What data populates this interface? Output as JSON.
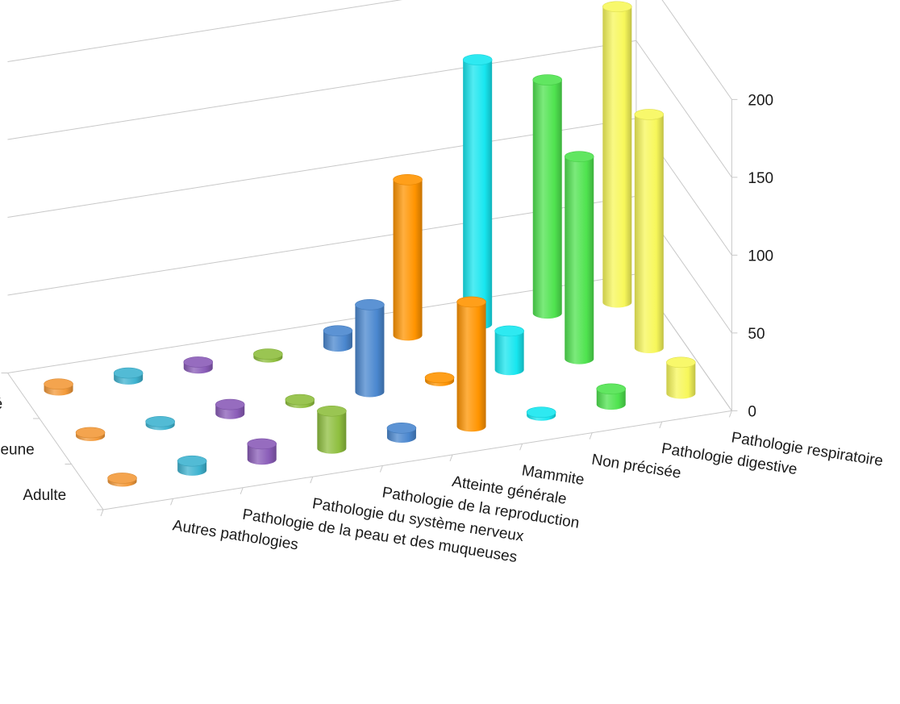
{
  "chart_data": {
    "type": "bar",
    "variant": "3d-cylinder",
    "title": "",
    "categories": [
      "Autres pathologies",
      "Pathologie de la peau et des muqueuses",
      "Pathologie du système nerveux",
      "Pathologie de la reproduction",
      "Atteinte générale",
      "Mammite",
      "Non précisée",
      "Pathologie digestive",
      "Pathologie respiratoire"
    ],
    "series": [
      {
        "name": "Adulte",
        "values": [
          1,
          6,
          10,
          24,
          6,
          80,
          2,
          10,
          20
        ]
      },
      {
        "name": "Jeune",
        "values": [
          2,
          2,
          6,
          1,
          56,
          1,
          25,
          130,
          150
        ]
      },
      {
        "name": "Non précisé",
        "values": [
          4,
          4,
          4,
          1,
          10,
          100,
          170,
          150,
          190
        ]
      }
    ],
    "colors": [
      "#f39a3a",
      "#3fb3d0",
      "#8a5cb8",
      "#8fbf3f",
      "#4a87cf",
      "#ff9400",
      "#17e6ef",
      "#4fe34f",
      "#f7f75a"
    ],
    "zlim": [
      0,
      200
    ],
    "zticks": [
      "0",
      "50",
      "100",
      "150",
      "200"
    ],
    "grid": true,
    "legend": "none"
  }
}
